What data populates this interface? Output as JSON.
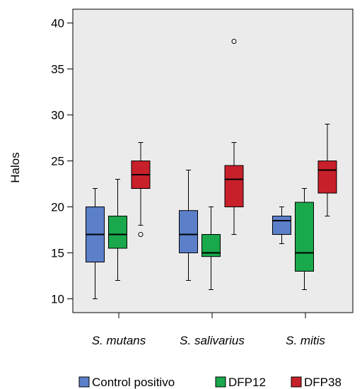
{
  "chart_data": {
    "type": "boxplot",
    "ylabel": "Halos",
    "ylim": [
      8.5,
      41.5
    ],
    "yticks": [
      10,
      15,
      20,
      25,
      30,
      35,
      40
    ],
    "categories": [
      "S. mutans",
      "S. salivarius",
      "S. mitis"
    ],
    "grid": false,
    "legend_position": "bottom",
    "series": [
      {
        "name": "Control positivo",
        "color": "#5b7fc8",
        "boxes": [
          {
            "min": 10,
            "q1": 14,
            "median": 17,
            "q3": 20,
            "max": 22,
            "outliers": []
          },
          {
            "min": 12,
            "q1": 15,
            "median": 17,
            "q3": 19.6,
            "max": 24,
            "outliers": []
          },
          {
            "min": 16,
            "q1": 17,
            "median": 18.5,
            "q3": 19,
            "max": 20,
            "outliers": []
          }
        ]
      },
      {
        "name": "DFP12",
        "color": "#19a84b",
        "boxes": [
          {
            "min": 12,
            "q1": 15.5,
            "median": 17,
            "q3": 19,
            "max": 23,
            "outliers": []
          },
          {
            "min": 11,
            "q1": 14.6,
            "median": 15,
            "q3": 17,
            "max": 20,
            "outliers": []
          },
          {
            "min": 11,
            "q1": 13,
            "median": 15,
            "q3": 20.5,
            "max": 22,
            "outliers": []
          }
        ]
      },
      {
        "name": "DFP38",
        "color": "#c8202a",
        "boxes": [
          {
            "min": 18,
            "q1": 22,
            "median": 23.5,
            "q3": 25,
            "max": 27,
            "outliers": [
              17
            ]
          },
          {
            "min": 17,
            "q1": 20,
            "median": 23,
            "q3": 24.5,
            "max": 27,
            "outliers": [
              38
            ]
          },
          {
            "min": 19,
            "q1": 21.5,
            "median": 24,
            "q3": 25,
            "max": 29,
            "outliers": []
          }
        ]
      }
    ]
  }
}
